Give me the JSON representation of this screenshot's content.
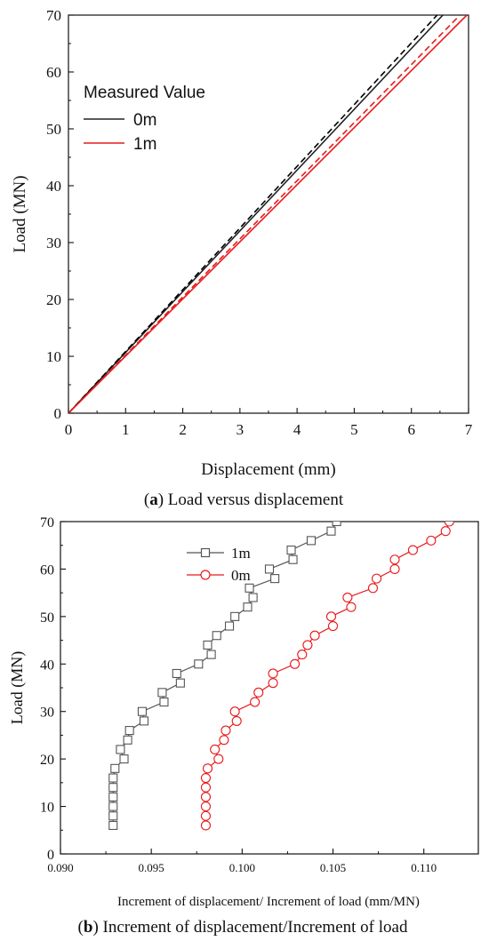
{
  "chart_data": [
    {
      "type": "line",
      "caption_letter": "a",
      "caption_text": "Load versus displacement",
      "xlabel": "Displacement (mm)",
      "ylabel": "Load (MN)",
      "xlim": [
        0,
        7
      ],
      "ylim": [
        0,
        70
      ],
      "xticks": [
        "0",
        "1",
        "2",
        "3",
        "4",
        "5",
        "6",
        "7"
      ],
      "yticks": [
        "0",
        "10",
        "20",
        "30",
        "40",
        "50",
        "60",
        "70"
      ],
      "legend_title": "Measured Value",
      "legend_position": "top-left",
      "grid": false,
      "series": [
        {
          "name": "0m",
          "color": "#222222",
          "style": "solid",
          "x": [
            0,
            6.55
          ],
          "y": [
            0,
            70
          ]
        },
        {
          "name": "",
          "color": "#000000",
          "style": "dashed",
          "x": [
            0,
            6.45
          ],
          "y": [
            0,
            70
          ]
        },
        {
          "name": "1m",
          "color": "#e8191b",
          "style": "solid",
          "x": [
            0,
            6.97
          ],
          "y": [
            0,
            70
          ]
        },
        {
          "name": "",
          "color": "#e8191b",
          "style": "dashed",
          "x": [
            0,
            6.85
          ],
          "y": [
            0,
            70
          ]
        }
      ]
    },
    {
      "type": "line",
      "caption_letter": "b",
      "caption_text": "Increment of displacement/Increment of load",
      "xlabel": "Increment of displacement/ Increment of load (mm/MN)",
      "ylabel": "Load (MN)",
      "xlim": [
        0.09,
        0.113
      ],
      "ylim": [
        0,
        70
      ],
      "xticks": [
        "0.090",
        "0.095",
        "0.100",
        "0.105",
        "0.110"
      ],
      "yticks": [
        "0",
        "10",
        "20",
        "30",
        "40",
        "50",
        "60",
        "70"
      ],
      "legend_position": "top-center",
      "grid": false,
      "series": [
        {
          "name": "1m",
          "color": "#555555",
          "marker": "square",
          "x": [
            0.0929,
            0.0929,
            0.0929,
            0.0929,
            0.0929,
            0.0929,
            0.093,
            0.0935,
            0.0933,
            0.0937,
            0.0938,
            0.0946,
            0.0945,
            0.0957,
            0.0956,
            0.0966,
            0.0964,
            0.0976,
            0.0983,
            0.0981,
            0.0986,
            0.0993,
            0.0996,
            0.1003,
            0.1006,
            0.1004,
            0.1018,
            0.1015,
            0.1028,
            0.1027,
            0.1038,
            0.1049,
            0.1052,
            0.1055
          ],
          "y": [
            6,
            8,
            10,
            12,
            14,
            16,
            18,
            20,
            22,
            24,
            26,
            28,
            30,
            32,
            34,
            36,
            38,
            40,
            42,
            44,
            46,
            48,
            50,
            52,
            54,
            56,
            58,
            60,
            62,
            64,
            66,
            68,
            70,
            72
          ]
        },
        {
          "name": "0m",
          "color": "#e8191b",
          "marker": "circle",
          "x": [
            0.098,
            0.098,
            0.098,
            0.098,
            0.098,
            0.098,
            0.0981,
            0.0987,
            0.0985,
            0.099,
            0.0991,
            0.0997,
            0.0996,
            0.1007,
            0.1009,
            0.1017,
            0.1017,
            0.1029,
            0.1033,
            0.1036,
            0.104,
            0.105,
            0.1049,
            0.106,
            0.1058,
            0.1072,
            0.1074,
            0.1084,
            0.1084,
            0.1094,
            0.1104,
            0.1112,
            0.1114
          ],
          "y": [
            6,
            8,
            10,
            12,
            14,
            16,
            18,
            20,
            22,
            24,
            26,
            28,
            30,
            32,
            34,
            36,
            38,
            40,
            42,
            44,
            46,
            48,
            50,
            52,
            54,
            56,
            58,
            60,
            62,
            64,
            66,
            68,
            70
          ]
        }
      ]
    }
  ]
}
